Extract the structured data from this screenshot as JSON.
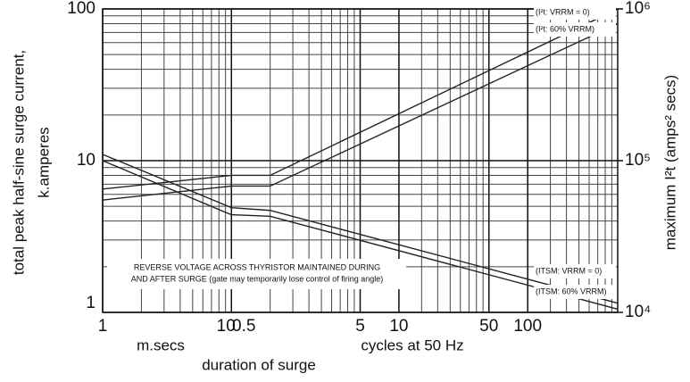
{
  "chart_data": {
    "type": "line",
    "log_x": true,
    "log_y": true,
    "grid": true,
    "ylabel": [
      "total peak half-sine surge current,",
      "k.amperes"
    ],
    "y2label": "maximum I²t (amps² secs)",
    "xlabels": [
      "m.secs",
      "cycles at 50 Hz",
      "duration of surge"
    ],
    "xlim": [
      1,
      10000
    ],
    "xticks": [
      1,
      10,
      {
        "value": 10,
        "label": "0.5"
      },
      {
        "value": 100,
        "label": "5"
      },
      {
        "value": 200,
        "label": "10"
      },
      {
        "value": 1000,
        "label": "50"
      },
      {
        "value": 2000,
        "label": "100"
      }
    ],
    "xgrid": [
      2,
      3,
      4,
      5,
      6,
      7,
      8,
      9,
      20,
      30,
      40,
      50,
      60,
      70,
      80,
      90,
      200,
      300,
      400,
      500,
      600,
      700,
      800,
      900,
      2000,
      3000,
      4000,
      5000,
      6000,
      7000,
      8000,
      9000
    ],
    "ylim": [
      1,
      100
    ],
    "yticks": [
      1,
      10,
      100
    ],
    "ygrid": [
      2,
      3,
      4,
      5,
      6,
      7,
      8,
      9,
      20,
      30,
      40,
      50,
      60,
      70,
      80,
      90
    ],
    "y2lim": [
      10000,
      1000000
    ],
    "y2ticks": [
      {
        "value": 10000,
        "label": "10⁴"
      },
      {
        "value": 100000,
        "label": "10⁵"
      },
      {
        "value": 1000000,
        "label": "10⁶"
      }
    ],
    "x": [
      1,
      10,
      20,
      10000
    ],
    "series": [
      {
        "name": "(I²t: VRRM = 0)",
        "color": "#222",
        "axis": "y2",
        "values": [
          65000,
          80000,
          80000,
          1000000
        ]
      },
      {
        "name": "(I²t: 60% VRRM)",
        "color": "#222",
        "axis": "y2",
        "values": [
          55000,
          68000,
          68000,
          800000
        ]
      },
      {
        "name": "(ITSM: VRRM = 0)",
        "color": "#222",
        "values": [
          11,
          4.9,
          4.7,
          1.15
        ]
      },
      {
        "name": "(ITSM: 60% VRRM)",
        "color": "#222",
        "values": [
          10,
          4.4,
          4.3,
          1.05
        ]
      }
    ],
    "annotation": [
      "REVERSE VOLTAGE ACROSS THYRISTOR MAINTAINED DURING",
      "AND AFTER SURGE (gate may temporarily lose control of firing angle)"
    ]
  }
}
